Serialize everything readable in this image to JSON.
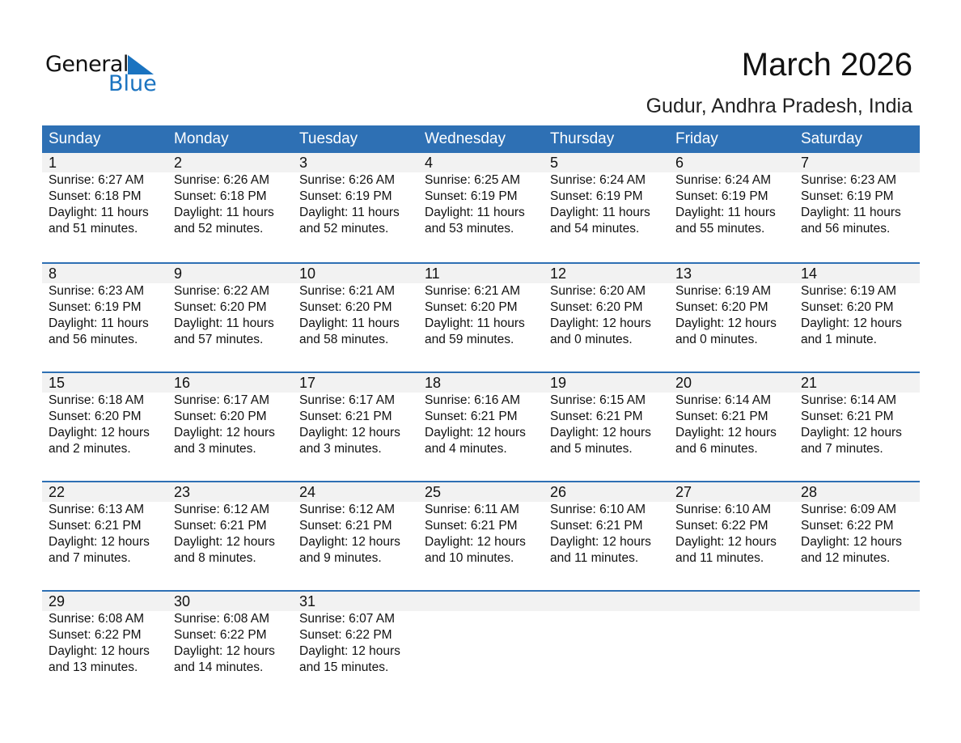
{
  "logo": {
    "text1": "General",
    "text2": "Blue",
    "color": "#1a73c0"
  },
  "title": "March 2026",
  "location": "Gudur, Andhra Pradesh, India",
  "colors": {
    "header": "#2e70b4",
    "band": "#f2f2f2"
  },
  "weekdays": [
    "Sunday",
    "Monday",
    "Tuesday",
    "Wednesday",
    "Thursday",
    "Friday",
    "Saturday"
  ],
  "first_weekday": 0,
  "days": [
    [
      "1",
      "Sunrise: 6:27 AM",
      "Sunset: 6:18 PM",
      "Daylight: 11 hours",
      "and 51 minutes."
    ],
    [
      "2",
      "Sunrise: 6:26 AM",
      "Sunset: 6:18 PM",
      "Daylight: 11 hours",
      "and 52 minutes."
    ],
    [
      "3",
      "Sunrise: 6:26 AM",
      "Sunset: 6:19 PM",
      "Daylight: 11 hours",
      "and 52 minutes."
    ],
    [
      "4",
      "Sunrise: 6:25 AM",
      "Sunset: 6:19 PM",
      "Daylight: 11 hours",
      "and 53 minutes."
    ],
    [
      "5",
      "Sunrise: 6:24 AM",
      "Sunset: 6:19 PM",
      "Daylight: 11 hours",
      "and 54 minutes."
    ],
    [
      "6",
      "Sunrise: 6:24 AM",
      "Sunset: 6:19 PM",
      "Daylight: 11 hours",
      "and 55 minutes."
    ],
    [
      "7",
      "Sunrise: 6:23 AM",
      "Sunset: 6:19 PM",
      "Daylight: 11 hours",
      "and 56 minutes."
    ],
    [
      "8",
      "Sunrise: 6:23 AM",
      "Sunset: 6:19 PM",
      "Daylight: 11 hours",
      "and 56 minutes."
    ],
    [
      "9",
      "Sunrise: 6:22 AM",
      "Sunset: 6:20 PM",
      "Daylight: 11 hours",
      "and 57 minutes."
    ],
    [
      "10",
      "Sunrise: 6:21 AM",
      "Sunset: 6:20 PM",
      "Daylight: 11 hours",
      "and 58 minutes."
    ],
    [
      "11",
      "Sunrise: 6:21 AM",
      "Sunset: 6:20 PM",
      "Daylight: 11 hours",
      "and 59 minutes."
    ],
    [
      "12",
      "Sunrise: 6:20 AM",
      "Sunset: 6:20 PM",
      "Daylight: 12 hours",
      "and 0 minutes."
    ],
    [
      "13",
      "Sunrise: 6:19 AM",
      "Sunset: 6:20 PM",
      "Daylight: 12 hours",
      "and 0 minutes."
    ],
    [
      "14",
      "Sunrise: 6:19 AM",
      "Sunset: 6:20 PM",
      "Daylight: 12 hours",
      "and 1 minute."
    ],
    [
      "15",
      "Sunrise: 6:18 AM",
      "Sunset: 6:20 PM",
      "Daylight: 12 hours",
      "and 2 minutes."
    ],
    [
      "16",
      "Sunrise: 6:17 AM",
      "Sunset: 6:20 PM",
      "Daylight: 12 hours",
      "and 3 minutes."
    ],
    [
      "17",
      "Sunrise: 6:17 AM",
      "Sunset: 6:21 PM",
      "Daylight: 12 hours",
      "and 3 minutes."
    ],
    [
      "18",
      "Sunrise: 6:16 AM",
      "Sunset: 6:21 PM",
      "Daylight: 12 hours",
      "and 4 minutes."
    ],
    [
      "19",
      "Sunrise: 6:15 AM",
      "Sunset: 6:21 PM",
      "Daylight: 12 hours",
      "and 5 minutes."
    ],
    [
      "20",
      "Sunrise: 6:14 AM",
      "Sunset: 6:21 PM",
      "Daylight: 12 hours",
      "and 6 minutes."
    ],
    [
      "21",
      "Sunrise: 6:14 AM",
      "Sunset: 6:21 PM",
      "Daylight: 12 hours",
      "and 7 minutes."
    ],
    [
      "22",
      "Sunrise: 6:13 AM",
      "Sunset: 6:21 PM",
      "Daylight: 12 hours",
      "and 7 minutes."
    ],
    [
      "23",
      "Sunrise: 6:12 AM",
      "Sunset: 6:21 PM",
      "Daylight: 12 hours",
      "and 8 minutes."
    ],
    [
      "24",
      "Sunrise: 6:12 AM",
      "Sunset: 6:21 PM",
      "Daylight: 12 hours",
      "and 9 minutes."
    ],
    [
      "25",
      "Sunrise: 6:11 AM",
      "Sunset: 6:21 PM",
      "Daylight: 12 hours",
      "and 10 minutes."
    ],
    [
      "26",
      "Sunrise: 6:10 AM",
      "Sunset: 6:21 PM",
      "Daylight: 12 hours",
      "and 11 minutes."
    ],
    [
      "27",
      "Sunrise: 6:10 AM",
      "Sunset: 6:22 PM",
      "Daylight: 12 hours",
      "and 11 minutes."
    ],
    [
      "28",
      "Sunrise: 6:09 AM",
      "Sunset: 6:22 PM",
      "Daylight: 12 hours",
      "and 12 minutes."
    ],
    [
      "29",
      "Sunrise: 6:08 AM",
      "Sunset: 6:22 PM",
      "Daylight: 12 hours",
      "and 13 minutes."
    ],
    [
      "30",
      "Sunrise: 6:08 AM",
      "Sunset: 6:22 PM",
      "Daylight: 12 hours",
      "and 14 minutes."
    ],
    [
      "31",
      "Sunrise: 6:07 AM",
      "Sunset: 6:22 PM",
      "Daylight: 12 hours",
      "and 15 minutes."
    ]
  ]
}
